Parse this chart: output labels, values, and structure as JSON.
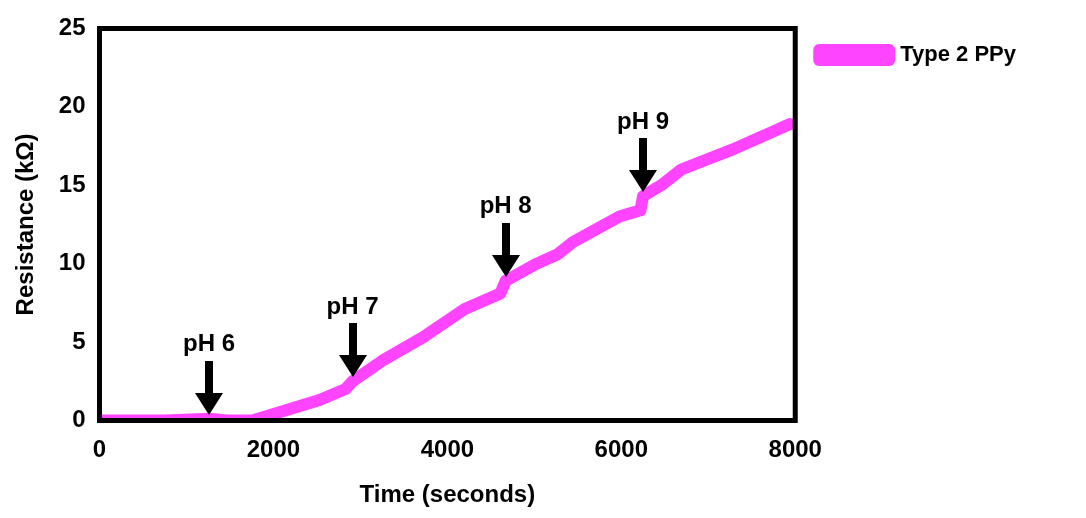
{
  "chart_data": {
    "type": "line",
    "xlabel": "Time (seconds)",
    "ylabel": "Resistance (kΩ)",
    "xlim": [
      0,
      8000
    ],
    "xticks": [
      0,
      2000,
      4000,
      6000,
      8000
    ],
    "ylim": [
      0,
      25
    ],
    "yticks": [
      0,
      5,
      10,
      15,
      20,
      25
    ],
    "grid": false,
    "legend": "top right",
    "marker": "none",
    "line_style": "solid",
    "series": [
      {
        "name": "Type 2 PPy",
        "color": "#ff44ff",
        "x": [
          36,
          750,
          1260,
          1460,
          1760,
          2060,
          2530,
          2830,
          2910,
          3250,
          3720,
          4200,
          4610,
          4670,
          5030,
          5270,
          5450,
          5980,
          6220,
          6250,
          6460,
          6690,
          7290,
          7940
        ],
        "values": [
          0,
          0,
          0.1,
          0,
          0,
          0.5,
          1.3,
          2.0,
          2.5,
          3.8,
          5.3,
          7.1,
          8.1,
          8.9,
          10.0,
          10.6,
          11.4,
          13.0,
          13.4,
          14.3,
          15.0,
          16.0,
          17.3,
          18.9
        ]
      }
    ],
    "annotations": [
      {
        "text": "pH 6",
        "x": 1260,
        "y": 0.1
      },
      {
        "text": "pH 7",
        "x": 2910,
        "y": 2.5
      },
      {
        "text": "pH 8",
        "x": 4670,
        "y": 8.9
      },
      {
        "text": "pH 9",
        "x": 6250,
        "y": 14.3
      }
    ]
  }
}
